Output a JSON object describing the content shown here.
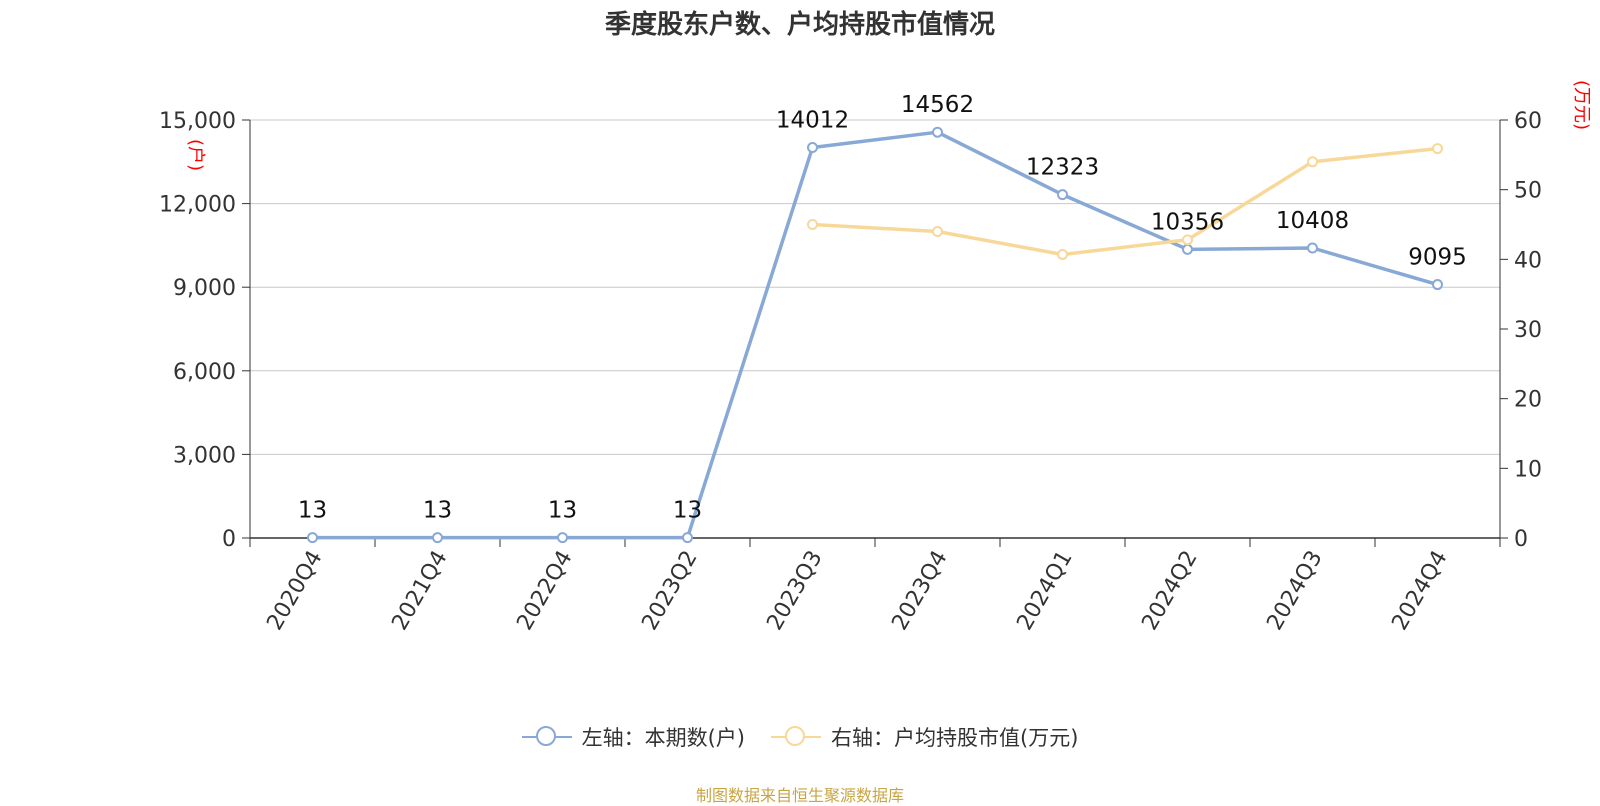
{
  "colors": {
    "series1": "#88a9d6",
    "series2": "#f8d898",
    "axis_unit": "#ff0000",
    "grid": "#c8c8c8",
    "axis": "#333333",
    "text": "#333333",
    "source": "#c8a544"
  },
  "chart_data": {
    "type": "line",
    "title": "季度股东户数、户均持股市值情况",
    "categories": [
      "2020Q4",
      "2021Q4",
      "2022Q4",
      "2023Q2",
      "2023Q3",
      "2023Q4",
      "2024Q1",
      "2024Q2",
      "2024Q3",
      "2024Q4"
    ],
    "y_left": {
      "unit": "(户)",
      "range": [
        0,
        15000
      ],
      "ticks": [
        0,
        3000,
        6000,
        9000,
        12000,
        15000
      ],
      "tick_labels": [
        "0",
        "3,000",
        "6,000",
        "9,000",
        "12,000",
        "15,000"
      ]
    },
    "y_right": {
      "unit": "(万元)",
      "range": [
        0,
        60
      ],
      "ticks": [
        0,
        10,
        20,
        30,
        40,
        50,
        60
      ],
      "tick_labels": [
        "0",
        "10",
        "20",
        "30",
        "40",
        "50",
        "60"
      ]
    },
    "grid": true,
    "legend_position": "bottom-center",
    "series": [
      {
        "name": "左轴：本期数(户)",
        "axis": "left",
        "values": [
          13,
          13,
          13,
          13,
          14012,
          14562,
          12323,
          10356,
          10408,
          9095
        ],
        "data_labels": [
          "13",
          "13",
          "13",
          "13",
          "14012",
          "14562",
          "12323",
          "10356",
          "10408",
          "9095"
        ]
      },
      {
        "name": "右轴：户均持股市值(万元)",
        "axis": "right",
        "values": [
          null,
          null,
          null,
          null,
          45.0,
          44.0,
          40.7,
          42.8,
          54.0,
          55.9
        ]
      }
    ]
  },
  "source": "制图数据来自恒生聚源数据库"
}
